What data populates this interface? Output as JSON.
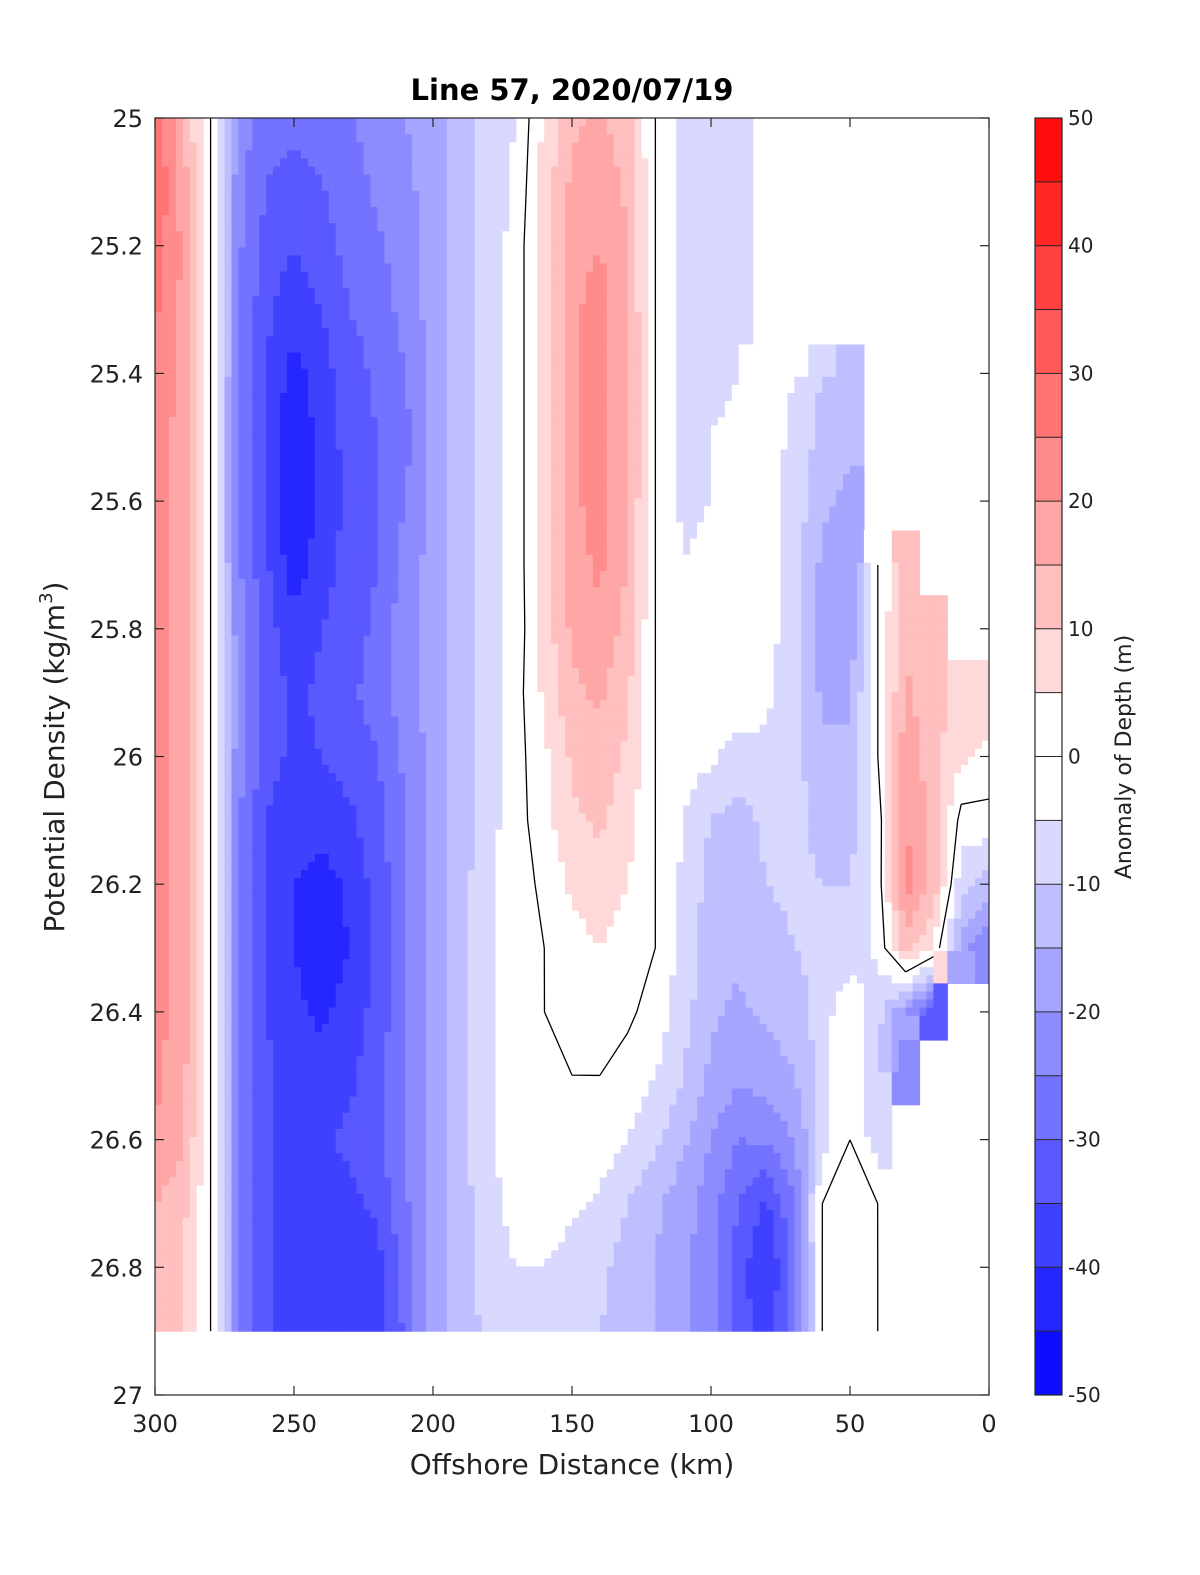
{
  "chart_data": {
    "type": "heatmap",
    "subtype": "filled-contour",
    "title": "Line 57, 2020/07/19",
    "xlabel": "Offshore Distance (km)",
    "ylabel_main": "Potential Density (kg/m",
    "ylabel_sup": "3",
    "ylabel_tail": ")",
    "xlim": [
      300,
      0
    ],
    "ylim": [
      25,
      27
    ],
    "x_direction": "reversed",
    "y_direction": "reversed",
    "xticks": [
      300,
      250,
      200,
      150,
      100,
      50,
      0
    ],
    "xtick_labels": [
      "300",
      "250",
      "200",
      "150",
      "100",
      "50",
      "0"
    ],
    "yticks": [
      25,
      25.2,
      25.4,
      25.6,
      25.8,
      26,
      26.2,
      26.4,
      26.6,
      26.8,
      27
    ],
    "ytick_labels": [
      "25",
      "25.2",
      "25.4",
      "25.6",
      "25.8",
      "26",
      "26.2",
      "26.4",
      "26.6",
      "26.8",
      "27"
    ],
    "data_extent": {
      "x": [
        300,
        0
      ],
      "y": [
        25,
        26.9
      ]
    },
    "colorbar": {
      "label": "Anomaly of Depth (m)",
      "range": [
        -50,
        50
      ],
      "step": 5,
      "ticks": [
        50,
        40,
        30,
        20,
        10,
        0,
        -10,
        -20,
        -30,
        -40,
        -50
      ],
      "tick_labels": [
        "50",
        "40",
        "30",
        "20",
        "10",
        "0",
        "-10",
        "-20",
        "-30",
        "-40",
        "-50"
      ],
      "colormap": "blue-white-red",
      "color_low": "#0000ff",
      "color_mid": "#ffffff",
      "color_high": "#ff0000"
    },
    "contour_zero_color": "#000000",
    "x": [
      300,
      290,
      280,
      270,
      260,
      250,
      240,
      230,
      220,
      210,
      200,
      190,
      180,
      170,
      160,
      150,
      140,
      130,
      120,
      110,
      100,
      90,
      80,
      70,
      60,
      50,
      40,
      30,
      20,
      10,
      0
    ],
    "y": [
      25,
      25.1,
      25.2,
      25.3,
      25.4,
      25.5,
      25.6,
      25.7,
      25.8,
      25.9,
      26,
      26.1,
      26.2,
      26.3,
      26.4,
      26.5,
      26.6,
      26.7,
      26.8,
      26.9
    ],
    "z": [
      [
        28,
        15,
        0,
        -22,
        -28,
        -28,
        -28,
        -26,
        -22,
        -20,
        -18,
        -13,
        -8,
        -5,
        6,
        14,
        16,
        12,
        0,
        -8,
        -8,
        -6,
        null,
        null,
        null,
        null,
        null,
        null,
        null,
        null,
        null
      ],
      [
        30,
        18,
        0,
        -23,
        -30,
        -32,
        -30,
        -27,
        -24,
        -21,
        -18,
        -13,
        -8,
        -4,
        7,
        16,
        18,
        14,
        0,
        -8,
        -8,
        -6,
        null,
        null,
        null,
        null,
        null,
        null,
        null,
        null,
        null
      ],
      [
        28,
        19,
        0,
        -24,
        -32,
        -35,
        -32,
        -28,
        -26,
        -22,
        -18,
        -13,
        -8,
        -3,
        8,
        18,
        20,
        15,
        0,
        -8,
        -8,
        -6,
        null,
        null,
        null,
        null,
        null,
        null,
        null,
        null,
        null
      ],
      [
        26,
        19,
        0,
        -24,
        -34,
        -38,
        -35,
        -30,
        -28,
        -23,
        -18,
        -13,
        -8,
        -3,
        8,
        19,
        22,
        16,
        0,
        -8,
        -8,
        -6,
        null,
        null,
        null,
        null,
        null,
        null,
        null,
        null,
        null
      ],
      [
        24,
        18,
        0,
        -24,
        -35,
        -42,
        -37,
        -32,
        -29,
        -25,
        -18,
        -13,
        -8,
        -3,
        8,
        19,
        22,
        16,
        0,
        -7,
        -7,
        -5,
        -3,
        -5,
        -10,
        -12,
        null,
        null,
        null,
        null,
        null
      ],
      [
        23,
        18,
        0,
        -25,
        -36,
        -45,
        -38,
        -33,
        -30,
        -27,
        -18,
        -13,
        -8,
        -3,
        8,
        19,
        22,
        16,
        0,
        -6,
        -5,
        -3,
        -3,
        -6,
        -12,
        -14,
        null,
        null,
        null,
        null,
        null
      ],
      [
        22,
        18,
        0,
        -25,
        -36,
        -46,
        -38,
        -34,
        -30,
        -25,
        -18,
        -13,
        -8,
        -3,
        8,
        19,
        22,
        16,
        0,
        -6,
        -5,
        -3,
        -3,
        -7,
        -14,
        -16,
        null,
        null,
        null,
        null,
        null
      ],
      [
        22,
        18,
        0,
        -24,
        -34,
        -43,
        -37,
        -33,
        -30,
        -23,
        -18,
        -13,
        -8,
        -3,
        8,
        18,
        21,
        15,
        0,
        -5,
        -4,
        -2,
        -3,
        -8,
        -16,
        -18,
        0,
        12,
        null,
        null,
        null
      ],
      [
        22,
        18,
        0,
        -23,
        -33,
        -38,
        -35,
        -32,
        -29,
        -22,
        -18,
        -13,
        -8,
        -3,
        7,
        16,
        19,
        13,
        0,
        -4,
        -3,
        0,
        -3,
        -8,
        -17,
        -18,
        0,
        14,
        10,
        null,
        null
      ],
      [
        23,
        18,
        0,
        -22,
        -32,
        -36,
        -34,
        -31,
        -28,
        -22,
        -18,
        -13,
        -8,
        -2,
        6,
        14,
        16,
        11,
        0,
        -3,
        -2,
        0,
        -4,
        -8,
        -16,
        -16,
        0,
        16,
        12,
        8,
        8
      ],
      [
        22,
        18,
        0,
        -23,
        -33,
        -36,
        -35,
        -33,
        -30,
        -24,
        -18,
        -13,
        -8,
        -2,
        4,
        11,
        13,
        9,
        0,
        -3,
        -4,
        -8,
        -6,
        -8,
        -14,
        -14,
        0,
        18,
        12,
        6,
        4
      ],
      [
        22,
        18,
        0,
        -24,
        -35,
        -38,
        -38,
        -36,
        -32,
        -25,
        -18,
        -13,
        -7,
        -2,
        3,
        9,
        11,
        7,
        0,
        -5,
        -10,
        -12,
        -9,
        -8,
        -12,
        -12,
        -3,
        20,
        14,
        -2,
        -2
      ],
      [
        22,
        18,
        0,
        -24,
        -36,
        -40,
        -42,
        -39,
        -33,
        -26,
        -18,
        -12,
        -6,
        -2,
        1,
        6,
        8,
        5,
        0,
        -6,
        -12,
        -13,
        -10,
        -9,
        -10,
        -10,
        -3,
        22,
        14,
        -8,
        -12
      ],
      [
        22,
        18,
        0,
        -24,
        -36,
        -40,
        -43,
        -40,
        -34,
        -26,
        -18,
        -12,
        -6,
        -1,
        0,
        3,
        5,
        3,
        0,
        -7,
        -13,
        -14,
        -12,
        -10,
        -9,
        -9,
        -4,
        12,
        5,
        -18,
        -25
      ],
      [
        22,
        18,
        0,
        -24,
        -35,
        -39,
        -41,
        -38,
        -33,
        -26,
        -18,
        -12,
        -6,
        -1,
        0,
        1,
        2,
        1,
        -2,
        -8,
        -14,
        -16,
        -14,
        -12,
        -8,
        0,
        -8,
        -20,
        -32,
        null,
        null
      ],
      [
        21,
        17,
        0,
        -24,
        -34,
        -38,
        -38,
        -36,
        -32,
        -25,
        -18,
        -12,
        -6,
        -1,
        0,
        0,
        0,
        -2,
        -5,
        -10,
        -16,
        -19,
        -18,
        -15,
        -8,
        0,
        -10,
        -24,
        null,
        null,
        null
      ],
      [
        20,
        16,
        0,
        -24,
        -34,
        -37,
        -36,
        -34,
        -31,
        -25,
        -18,
        -12,
        -6,
        -1,
        0,
        0,
        -2,
        -5,
        -9,
        -14,
        -20,
        -25,
        -24,
        -20,
        -8,
        0,
        -8,
        null,
        null,
        null,
        null
      ],
      [
        15,
        12,
        0,
        -24,
        -34,
        -37,
        -37,
        -36,
        -34,
        -26,
        -18,
        -12,
        -7,
        -3,
        -2,
        -4,
        -6,
        -10,
        -14,
        -18,
        -23,
        -30,
        -36,
        -25,
        0,
        2,
        0,
        null,
        null,
        null,
        null
      ],
      [
        13,
        10,
        0,
        -24,
        -34,
        -37,
        -38,
        -38,
        -37,
        -28,
        -18,
        -12,
        -8,
        -5,
        -5,
        -7,
        -9,
        -12,
        -15,
        -19,
        -22,
        -33,
        -40,
        -28,
        0,
        4,
        0,
        null,
        null,
        null,
        null
      ],
      [
        13,
        10,
        0,
        -24,
        -34,
        -37,
        -39,
        -40,
        -38,
        -29,
        -18,
        -12,
        -9,
        -6,
        -6,
        -8,
        -10,
        -12,
        -15,
        -19,
        -22,
        -32,
        -38,
        -28,
        0,
        4,
        0,
        null,
        null,
        null,
        null
      ]
    ]
  }
}
